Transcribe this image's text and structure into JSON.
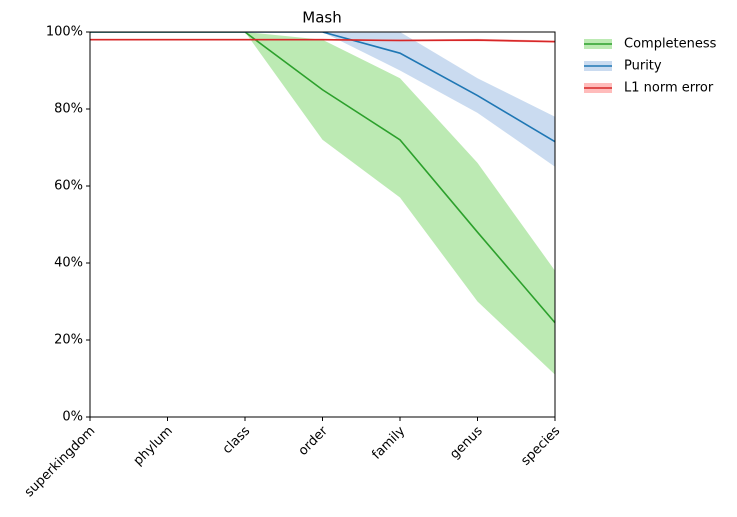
{
  "chart_data": {
    "type": "line",
    "title": "Mash",
    "categories": [
      "superkingdom",
      "phylum",
      "class",
      "order",
      "family",
      "genus",
      "species"
    ],
    "series": [
      {
        "name": "Completeness",
        "color": "#2ca02c",
        "band_color": "#98df8a",
        "values": [
          100,
          100,
          100,
          85,
          72,
          48,
          24.5
        ],
        "lower": [
          100,
          100,
          100,
          72,
          57,
          30,
          11
        ],
        "upper": [
          100,
          100,
          100,
          98,
          88,
          66,
          38
        ]
      },
      {
        "name": "Purity",
        "color": "#1f77b4",
        "band_color": "#aec7e8",
        "values": [
          100,
          100,
          100,
          100,
          94.5,
          83.5,
          71.5
        ],
        "lower": [
          100,
          100,
          100,
          100,
          90,
          79,
          65
        ],
        "upper": [
          100,
          100,
          100,
          100,
          100,
          88,
          78
        ]
      },
      {
        "name": "L1 norm error",
        "color": "#d62728",
        "band_color": "#ff9896",
        "values": [
          98,
          98,
          98,
          98,
          97.8,
          97.9,
          97.5
        ],
        "lower": [
          97.8,
          97.8,
          97.8,
          97.8,
          97.6,
          97.6,
          97.2
        ],
        "upper": [
          98.2,
          98.2,
          98.2,
          98.2,
          98.0,
          98.2,
          97.8
        ]
      }
    ],
    "ylim": [
      0,
      100
    ],
    "yticks": [
      {
        "value": 0,
        "label": "0%"
      },
      {
        "value": 20,
        "label": "20%"
      },
      {
        "value": 40,
        "label": "40%"
      },
      {
        "value": 60,
        "label": "60%"
      },
      {
        "value": 80,
        "label": "80%"
      },
      {
        "value": 100,
        "label": "100%"
      }
    ],
    "legend": "outside-upper-right"
  }
}
